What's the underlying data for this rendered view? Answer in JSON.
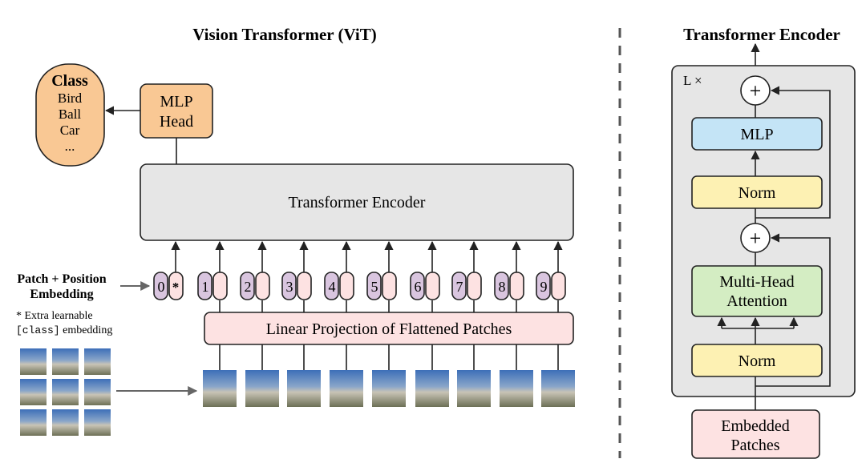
{
  "left": {
    "title": "Vision Transformer (ViT)",
    "class_box": {
      "heading": "Class",
      "items": [
        "Bird",
        "Ball",
        "Car",
        "..."
      ]
    },
    "mlp_head": [
      "MLP",
      "Head"
    ],
    "encoder_label": "Transformer Encoder",
    "embedding_label": [
      "Patch + Position",
      "Embedding"
    ],
    "note_line1": "* Extra learnable",
    "note_code": "[class]",
    "note_rest": " embedding",
    "tokens": [
      "0",
      "1",
      "2",
      "3",
      "4",
      "5",
      "6",
      "7",
      "8",
      "9"
    ],
    "class_token_mark": "*",
    "projection_label": "Linear Projection of Flattened Patches"
  },
  "right": {
    "title": "Transformer Encoder",
    "repeat_label": "L ×",
    "plus": "+",
    "mlp": "MLP",
    "norm": "Norm",
    "attention": [
      "Multi-Head",
      "Attention"
    ],
    "input": [
      "Embedded",
      "Patches"
    ]
  },
  "colors": {
    "class_orange": "#f9c894",
    "position_purple": "#d9c5df",
    "patch_pink": "#fde2e2",
    "encoder_gray": "#e6e6e6",
    "mlp_blue": "#c4e4f6",
    "norm_yellow": "#fdf1b3",
    "attention_green": "#d4edc3"
  }
}
